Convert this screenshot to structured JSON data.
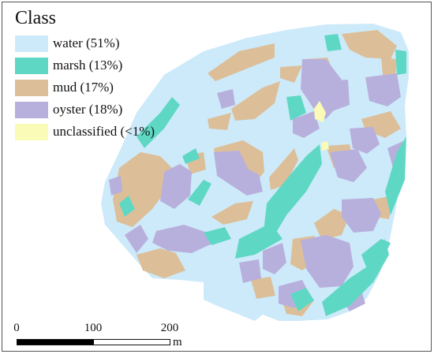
{
  "colors": {
    "water": "#cdeafa",
    "marsh": "#5ed8c4",
    "mud": "#dcbf98",
    "oyster": "#b8b0dc",
    "unclassified": "#fbfbb8",
    "frame": "#555555"
  },
  "legend": {
    "title": "Class",
    "items": [
      {
        "key": "water",
        "label": "water (51%)",
        "color": "#cdeafa"
      },
      {
        "key": "marsh",
        "label": "marsh (13%)",
        "color": "#5ed8c4"
      },
      {
        "key": "mud",
        "label": "mud (17%)",
        "color": "#dcbf98"
      },
      {
        "key": "oyster",
        "label": "oyster (18%)",
        "color": "#b8b0dc"
      },
      {
        "key": "unclassified",
        "label": "unclassified (<1%)",
        "color": "#fbfbb8"
      }
    ]
  },
  "scalebar": {
    "ticks": [
      "0",
      "100",
      "200"
    ],
    "unit": "m"
  }
}
